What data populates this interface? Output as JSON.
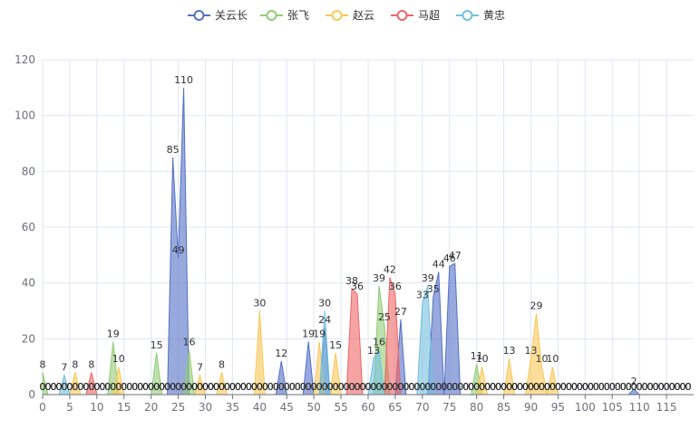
{
  "chart_data": {
    "type": "area",
    "title": "",
    "xlabel": "",
    "ylabel": "",
    "xlim": [
      0,
      119
    ],
    "ylim": [
      0,
      120
    ],
    "y_ticks": [
      0,
      20,
      40,
      60,
      80,
      100,
      120
    ],
    "x_ticks": [
      0,
      5,
      10,
      15,
      20,
      25,
      30,
      35,
      40,
      45,
      50,
      55,
      60,
      65,
      70,
      75,
      80,
      85,
      90,
      95,
      100,
      105,
      110,
      115
    ],
    "grid": true,
    "legend_position": "top-center",
    "series": [
      {
        "name": "关云长",
        "color": "#5470c6",
        "values": [
          0,
          0,
          0,
          0,
          0,
          0,
          0,
          0,
          0,
          0,
          0,
          0,
          0,
          0,
          0,
          0,
          0,
          0,
          0,
          0,
          0,
          0,
          0,
          0,
          85,
          49,
          110,
          0,
          0,
          0,
          0,
          0,
          0,
          0,
          0,
          0,
          0,
          0,
          0,
          0,
          0,
          0,
          0,
          0,
          12,
          0,
          0,
          0,
          0,
          19,
          0,
          0,
          24,
          0,
          0,
          0,
          0,
          0,
          0,
          0,
          0,
          0,
          0,
          0,
          0,
          0,
          27,
          0,
          0,
          0,
          0,
          0,
          35,
          44,
          0,
          46,
          47,
          0,
          0,
          0,
          0,
          0,
          0,
          0,
          0,
          0,
          0,
          0,
          0,
          0,
          0,
          0,
          0,
          0,
          0,
          0,
          0,
          0,
          0,
          0,
          0,
          0,
          0,
          0,
          0,
          0,
          0,
          0,
          0,
          2,
          0,
          0,
          0,
          0,
          0,
          0,
          0,
          0,
          0,
          0
        ]
      },
      {
        "name": "张飞",
        "color": "#91cc75",
        "values": [
          8,
          0,
          0,
          0,
          0,
          0,
          0,
          0,
          0,
          0,
          0,
          0,
          0,
          19,
          0,
          0,
          0,
          0,
          0,
          0,
          0,
          15,
          0,
          0,
          0,
          0,
          0,
          16,
          0,
          0,
          0,
          0,
          0,
          0,
          0,
          0,
          0,
          0,
          0,
          0,
          0,
          0,
          0,
          0,
          0,
          0,
          0,
          0,
          0,
          0,
          0,
          0,
          0,
          0,
          0,
          0,
          0,
          0,
          0,
          0,
          0,
          0,
          39,
          25,
          0,
          0,
          0,
          0,
          0,
          0,
          0,
          0,
          0,
          0,
          0,
          0,
          0,
          0,
          0,
          0,
          11,
          0,
          0,
          0,
          0,
          0,
          0,
          0,
          0,
          0,
          0,
          0,
          0,
          0,
          0,
          0,
          0,
          0,
          0,
          0,
          0,
          0,
          0,
          0,
          0,
          0,
          0,
          0,
          0,
          0,
          0,
          0,
          0,
          0,
          0,
          0,
          0,
          0,
          0,
          0
        ]
      },
      {
        "name": "赵云",
        "color": "#fac858",
        "values": [
          0,
          0,
          0,
          0,
          0,
          0,
          8,
          0,
          0,
          0,
          0,
          0,
          0,
          0,
          10,
          0,
          0,
          0,
          0,
          0,
          0,
          0,
          0,
          0,
          0,
          0,
          0,
          0,
          0,
          7,
          0,
          0,
          0,
          8,
          0,
          0,
          0,
          0,
          0,
          0,
          30,
          0,
          0,
          0,
          0,
          0,
          0,
          0,
          0,
          0,
          0,
          19,
          0,
          0,
          15,
          0,
          0,
          0,
          0,
          0,
          0,
          0,
          0,
          0,
          0,
          0,
          0,
          0,
          0,
          0,
          0,
          0,
          0,
          0,
          0,
          0,
          0,
          0,
          0,
          0,
          0,
          10,
          0,
          0,
          0,
          0,
          13,
          0,
          0,
          0,
          13,
          29,
          10,
          0,
          10,
          0,
          0,
          0,
          0,
          0,
          0,
          0,
          0,
          0,
          0,
          0,
          0,
          0,
          0,
          0,
          0,
          0,
          0,
          0,
          0,
          0,
          0,
          0,
          0,
          0
        ]
      },
      {
        "name": "马超",
        "color": "#ee6666",
        "values": [
          0,
          0,
          0,
          0,
          0,
          0,
          0,
          0,
          0,
          8,
          0,
          0,
          0,
          0,
          0,
          0,
          0,
          0,
          0,
          0,
          0,
          0,
          0,
          0,
          0,
          0,
          0,
          0,
          0,
          0,
          0,
          0,
          0,
          0,
          0,
          0,
          0,
          0,
          0,
          0,
          0,
          0,
          0,
          0,
          0,
          0,
          0,
          0,
          0,
          0,
          0,
          0,
          0,
          0,
          0,
          0,
          0,
          38,
          36,
          0,
          0,
          0,
          0,
          0,
          42,
          36,
          0,
          0,
          0,
          0,
          0,
          0,
          0,
          0,
          0,
          0,
          0,
          0,
          0,
          0,
          0,
          0,
          0,
          0,
          0,
          0,
          0,
          0,
          0,
          0,
          0,
          0,
          0,
          0,
          0,
          0,
          0,
          0,
          0,
          0,
          0,
          0,
          0,
          0,
          0,
          0,
          0,
          0,
          0,
          0,
          0,
          0,
          0,
          0,
          0,
          0,
          0,
          0,
          0,
          0
        ]
      },
      {
        "name": "黄忠",
        "color": "#73c0de",
        "values": [
          0,
          0,
          0,
          0,
          7,
          0,
          0,
          0,
          0,
          0,
          0,
          0,
          0,
          0,
          0,
          0,
          0,
          0,
          0,
          0,
          0,
          0,
          0,
          0,
          0,
          0,
          0,
          0,
          0,
          0,
          0,
          0,
          0,
          0,
          0,
          0,
          0,
          0,
          0,
          0,
          0,
          0,
          0,
          0,
          0,
          0,
          0,
          0,
          0,
          0,
          0,
          0,
          30,
          0,
          0,
          0,
          0,
          0,
          0,
          0,
          0,
          13,
          16,
          0,
          0,
          0,
          0,
          0,
          0,
          0,
          33,
          39,
          0,
          0,
          0,
          0,
          0,
          0,
          0,
          0,
          0,
          0,
          0,
          0,
          0,
          0,
          0,
          0,
          0,
          0,
          0,
          0,
          0,
          0,
          0,
          0,
          0,
          0,
          0,
          0,
          0,
          0,
          0,
          0,
          0,
          0,
          0,
          0,
          0,
          0,
          0,
          0,
          0,
          0,
          0,
          0,
          0,
          0,
          0,
          0
        ]
      }
    ]
  }
}
